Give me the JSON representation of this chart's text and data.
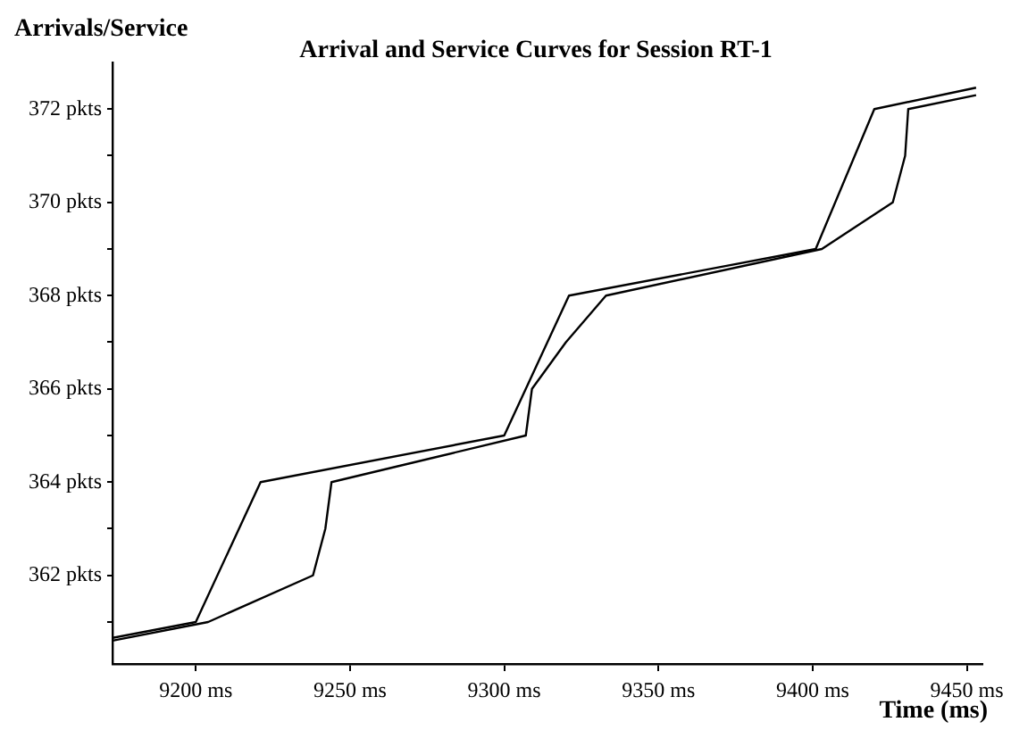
{
  "chart_data": {
    "type": "line",
    "title": "Arrival and Service Curves for Session RT-1",
    "xlabel": "Time (ms)",
    "ylabel": "Arrivals/Service",
    "series": [
      {
        "color": "#000000",
        "x": [
          9173,
          9200,
          9221,
          9300,
          9321,
          9401,
          9420,
          9453
        ],
        "values": [
          360.66,
          361,
          364,
          365,
          368,
          369,
          372,
          372.46
        ]
      },
      {
        "color": "#000000",
        "x": [
          9173,
          9204,
          9238,
          9242,
          9244,
          9307,
          9309,
          9320,
          9333,
          9403,
          9426,
          9430,
          9431,
          9453
        ],
        "values": [
          360.6,
          361,
          362,
          363,
          364,
          365,
          366,
          367,
          368,
          369,
          370,
          371,
          372,
          372.3
        ]
      }
    ],
    "xlim": [
      9173,
      9455
    ],
    "ylim": [
      360.1,
      373
    ],
    "xticks": [
      {
        "value": 9200,
        "label": "9200 ms"
      },
      {
        "value": 9250,
        "label": "9250 ms"
      },
      {
        "value": 9300,
        "label": "9300 ms"
      },
      {
        "value": 9350,
        "label": "9350 ms"
      },
      {
        "value": 9400,
        "label": "9400 ms"
      },
      {
        "value": 9450,
        "label": "9450 ms"
      }
    ],
    "yticks": [
      {
        "value": 361,
        "label": null
      },
      {
        "value": 362,
        "label": "362 pkts"
      },
      {
        "value": 363,
        "label": null
      },
      {
        "value": 364,
        "label": "364 pkts"
      },
      {
        "value": 365,
        "label": null
      },
      {
        "value": 366,
        "label": "366 pkts"
      },
      {
        "value": 367,
        "label": null
      },
      {
        "value": 368,
        "label": "368 pkts"
      },
      {
        "value": 369,
        "label": null
      },
      {
        "value": 370,
        "label": "370 pkts"
      },
      {
        "value": 371,
        "label": null
      },
      {
        "value": 372,
        "label": "372 pkts"
      }
    ],
    "grid": false,
    "legend": false,
    "marker": "none",
    "line_style": "solid"
  }
}
